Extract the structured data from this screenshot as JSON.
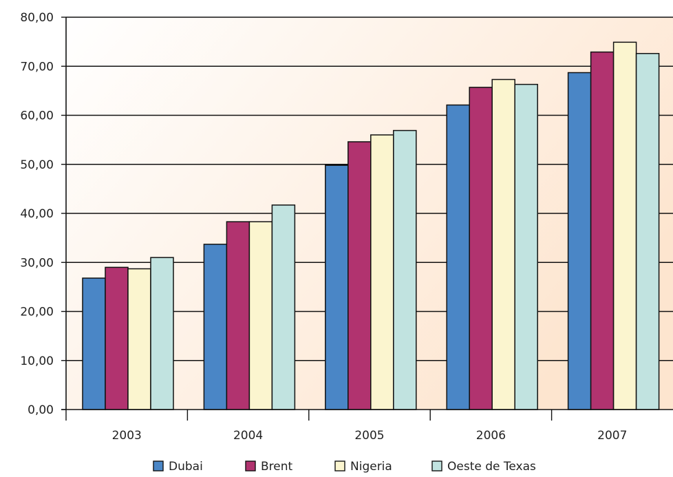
{
  "chart_data": {
    "type": "bar",
    "categories": [
      "2003",
      "2004",
      "2005",
      "2006",
      "2007"
    ],
    "series": [
      {
        "name": "Dubai",
        "color": "#4a86c6",
        "values": [
          26.8,
          33.7,
          49.8,
          62.1,
          68.7
        ]
      },
      {
        "name": "Brent",
        "color": "#b1336f",
        "values": [
          29.0,
          38.3,
          54.6,
          65.7,
          72.9
        ]
      },
      {
        "name": "Nigeria",
        "color": "#fbf5cf",
        "values": [
          28.7,
          38.3,
          56.0,
          67.3,
          74.9
        ]
      },
      {
        "name": "Oeste de Texas",
        "color": "#c1e3e0",
        "values": [
          31.0,
          41.7,
          56.9,
          66.3,
          72.6
        ]
      }
    ],
    "ylim": [
      0,
      80
    ],
    "y_ticks": [
      "0,00",
      "10,00",
      "20,00",
      "30,00",
      "40,00",
      "50,00",
      "60,00",
      "70,00",
      "80,00"
    ],
    "grid": true,
    "legend_position": "bottom",
    "title": "",
    "xlabel": "",
    "ylabel": ""
  }
}
